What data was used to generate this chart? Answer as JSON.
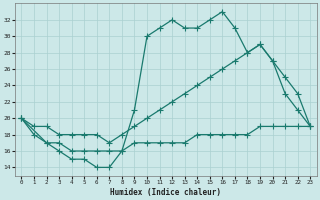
{
  "xlabel": "Humidex (Indice chaleur)",
  "background_color": "#cce8e8",
  "grid_color": "#aad0d0",
  "line_color": "#1a7a6e",
  "ylim": [
    13,
    34
  ],
  "xlim": [
    -0.5,
    23.5
  ],
  "yticks": [
    14,
    16,
    18,
    20,
    22,
    24,
    26,
    28,
    30,
    32
  ],
  "xticks": [
    0,
    1,
    2,
    3,
    4,
    5,
    6,
    7,
    8,
    9,
    10,
    11,
    12,
    13,
    14,
    15,
    16,
    17,
    18,
    19,
    20,
    21,
    22,
    23
  ],
  "line1_x": [
    0,
    1,
    2,
    3,
    4,
    5,
    6,
    7,
    8,
    9,
    10,
    11,
    12,
    13,
    14,
    15,
    16,
    17,
    18,
    19,
    20,
    21,
    22,
    23
  ],
  "line1_y": [
    20,
    18,
    17,
    16,
    15,
    15,
    14,
    14,
    16,
    21,
    30,
    31,
    32,
    31,
    31,
    32,
    33,
    31,
    28,
    29,
    27,
    23,
    21,
    19
  ],
  "line2_x": [
    0,
    1,
    2,
    3,
    4,
    5,
    6,
    7,
    8,
    9,
    10,
    11,
    12,
    13,
    14,
    15,
    16,
    17,
    18,
    19,
    20,
    21,
    22,
    23
  ],
  "line2_y": [
    20,
    19,
    19,
    18,
    18,
    18,
    18,
    17,
    18,
    19,
    20,
    21,
    22,
    23,
    24,
    25,
    26,
    27,
    28,
    29,
    27,
    25,
    23,
    19
  ],
  "line3_x": [
    0,
    2,
    3,
    4,
    5,
    6,
    7,
    8,
    9,
    10,
    11,
    12,
    13,
    14,
    15,
    16,
    17,
    18,
    19,
    20,
    21,
    22,
    23
  ],
  "line3_y": [
    20,
    17,
    17,
    16,
    16,
    16,
    16,
    16,
    17,
    17,
    17,
    17,
    17,
    18,
    18,
    18,
    18,
    18,
    19,
    19,
    19,
    19,
    19
  ]
}
